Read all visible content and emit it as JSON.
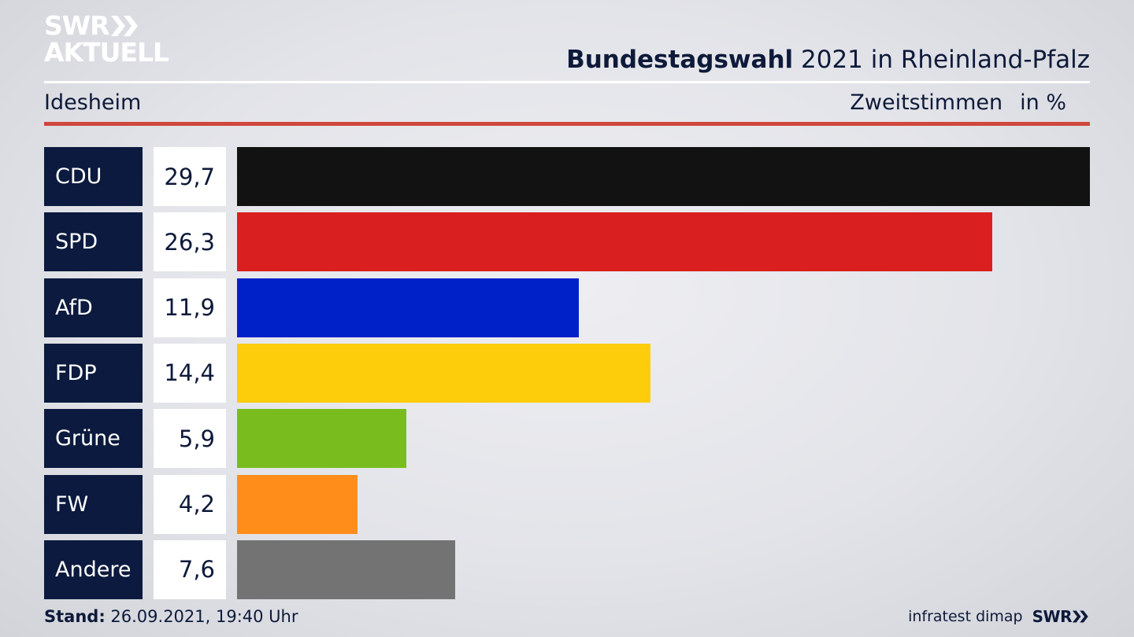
{
  "logo": {
    "line1": "SWR",
    "line2": "AKTUELL",
    "icon": "double-chevron-icon"
  },
  "header": {
    "title_strong": "Bundestagswahl",
    "title_rest": " 2021 in Rheinland-Pfalz",
    "region": "Idesheim",
    "metric": "Zweitstimmen",
    "unit": "in %"
  },
  "colors": {
    "accent_red": "#d0473c",
    "label_bg": "#0b1a3e"
  },
  "chart_data": {
    "type": "bar",
    "orientation": "horizontal",
    "categories": [
      "CDU",
      "SPD",
      "AfD",
      "FDP",
      "Grüne",
      "FW",
      "Andere"
    ],
    "values": [
      29.7,
      26.3,
      11.9,
      14.4,
      5.9,
      4.2,
      7.6
    ],
    "value_labels": [
      "29,7",
      "26,3",
      "11,9",
      "14,4",
      "5,9",
      "4,2",
      "7,6"
    ],
    "colors": [
      "#121212",
      "#d91f1f",
      "#0020c8",
      "#fdcc0a",
      "#78bd1d",
      "#fe8d19",
      "#737373"
    ],
    "xlim": [
      0,
      29.7
    ],
    "grid": false,
    "legend": "none"
  },
  "footer": {
    "stand_label": "Stand:",
    "stand_value": " 26.09.2021, 19:40 Uhr",
    "source": "infratest dimap",
    "brand": "SWR"
  }
}
